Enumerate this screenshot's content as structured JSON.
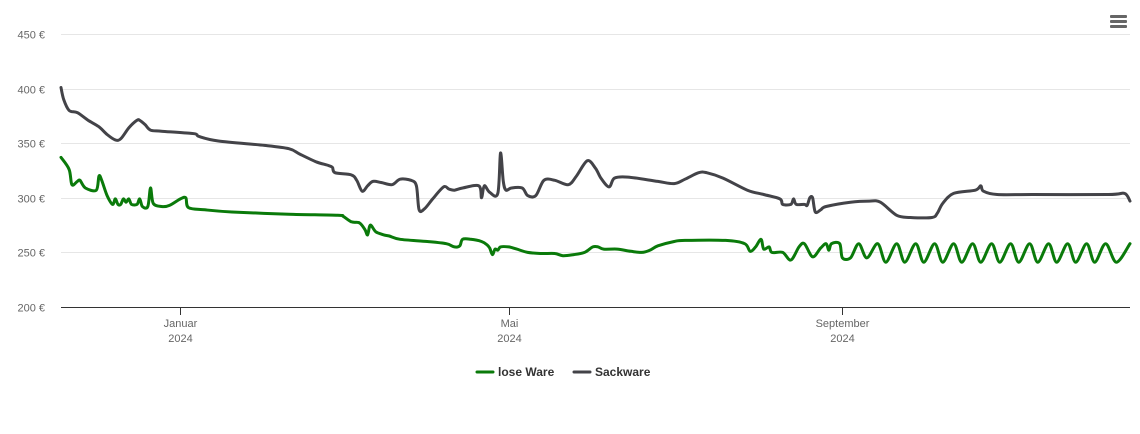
{
  "menu": {
    "icon": "hamburger-menu-icon"
  },
  "chart_data": {
    "type": "line",
    "y_ticks": [
      "200 €",
      "250 €",
      "300 €",
      "350 €",
      "400 €",
      "450 €"
    ],
    "y_tick_values": [
      200,
      250,
      300,
      350,
      400,
      450
    ],
    "ylim": [
      200,
      450
    ],
    "xlim": [
      "2023-11-18",
      "2024-12-16"
    ],
    "x_ticks": [
      {
        "date": "2024-01-01",
        "month": "Januar",
        "year": "2024"
      },
      {
        "date": "2024-05-01",
        "month": "Mai",
        "year": "2024"
      },
      {
        "date": "2024-09-01",
        "month": "September",
        "year": "2024"
      }
    ],
    "grid": true,
    "legend": "bottom-center",
    "series": [
      {
        "name": "lose Ware",
        "color": "#0a7a0a",
        "points": [
          [
            "2023-11-18",
            337
          ],
          [
            "2023-11-21",
            326
          ],
          [
            "2023-11-22",
            312
          ],
          [
            "2023-11-24",
            315
          ],
          [
            "2023-11-25",
            316
          ],
          [
            "2023-11-27",
            309
          ],
          [
            "2023-12-01",
            307
          ],
          [
            "2023-12-02",
            320
          ],
          [
            "2023-12-03",
            316
          ],
          [
            "2023-12-05",
            302
          ],
          [
            "2023-12-07",
            294
          ],
          [
            "2023-12-08",
            299
          ],
          [
            "2023-12-09",
            294
          ],
          [
            "2023-12-10",
            294
          ],
          [
            "2023-12-11",
            299
          ],
          [
            "2023-12-12",
            296
          ],
          [
            "2023-12-13",
            299
          ],
          [
            "2023-12-14",
            294
          ],
          [
            "2023-12-16",
            294
          ],
          [
            "2023-12-17",
            299
          ],
          [
            "2023-12-18",
            292
          ],
          [
            "2023-12-20",
            292
          ],
          [
            "2023-12-21",
            309
          ],
          [
            "2023-12-22",
            295
          ],
          [
            "2023-12-25",
            292
          ],
          [
            "2023-12-28",
            293
          ],
          [
            "2024-01-01",
            299
          ],
          [
            "2024-01-03",
            300
          ],
          [
            "2024-01-04",
            291
          ],
          [
            "2024-01-10",
            289
          ],
          [
            "2024-01-20",
            287
          ],
          [
            "2024-02-10",
            285
          ],
          [
            "2024-02-28",
            284
          ],
          [
            "2024-03-01",
            283
          ],
          [
            "2024-03-04",
            278
          ],
          [
            "2024-03-07",
            277
          ],
          [
            "2024-03-09",
            271
          ],
          [
            "2024-03-10",
            266
          ],
          [
            "2024-03-11",
            275
          ],
          [
            "2024-03-13",
            269
          ],
          [
            "2024-03-16",
            266
          ],
          [
            "2024-03-18",
            265
          ],
          [
            "2024-03-22",
            262
          ],
          [
            "2024-04-01",
            260
          ],
          [
            "2024-04-08",
            258
          ],
          [
            "2024-04-11",
            255
          ],
          [
            "2024-04-13",
            256
          ],
          [
            "2024-04-14",
            262
          ],
          [
            "2024-04-17",
            262
          ],
          [
            "2024-04-21",
            260
          ],
          [
            "2024-04-23",
            257
          ],
          [
            "2024-04-24",
            254
          ],
          [
            "2024-04-25",
            248
          ],
          [
            "2024-04-26",
            253
          ],
          [
            "2024-04-27",
            252
          ],
          [
            "2024-04-28",
            255
          ],
          [
            "2024-05-01",
            255
          ],
          [
            "2024-05-04",
            253
          ],
          [
            "2024-05-08",
            250
          ],
          [
            "2024-05-13",
            249
          ],
          [
            "2024-05-18",
            249
          ],
          [
            "2024-05-21",
            247
          ],
          [
            "2024-05-25",
            248
          ],
          [
            "2024-05-29",
            250
          ],
          [
            "2024-06-01",
            255
          ],
          [
            "2024-06-03",
            255
          ],
          [
            "2024-06-05",
            253
          ],
          [
            "2024-06-10",
            253
          ],
          [
            "2024-06-15",
            251
          ],
          [
            "2024-06-19",
            250
          ],
          [
            "2024-06-22",
            252
          ],
          [
            "2024-06-25",
            256
          ],
          [
            "2024-07-01",
            260
          ],
          [
            "2024-07-05",
            261
          ],
          [
            "2024-07-20",
            261
          ],
          [
            "2024-07-27",
            258
          ],
          [
            "2024-07-29",
            251
          ],
          [
            "2024-07-31",
            255
          ],
          [
            "2024-08-02",
            262
          ],
          [
            "2024-08-03",
            253
          ],
          [
            "2024-08-05",
            255
          ],
          [
            "2024-08-06",
            250
          ],
          [
            "2024-08-10",
            250
          ],
          [
            "2024-08-13",
            243
          ],
          [
            "2024-08-16",
            255
          ],
          [
            "2024-08-18",
            258
          ],
          [
            "2024-08-21",
            246
          ],
          [
            "2024-08-24",
            254
          ],
          [
            "2024-08-26",
            258
          ],
          [
            "2024-08-27",
            252
          ],
          [
            "2024-08-28",
            258
          ],
          [
            "2024-08-31",
            258
          ],
          [
            "2024-09-01",
            245
          ],
          [
            "2024-09-04",
            245
          ],
          [
            "2024-09-07",
            258
          ],
          [
            "2024-09-10",
            245
          ],
          [
            "2024-09-14",
            258
          ],
          [
            "2024-09-17",
            241
          ],
          [
            "2024-09-21",
            258
          ],
          [
            "2024-09-24",
            241
          ],
          [
            "2024-09-28",
            258
          ],
          [
            "2024-10-01",
            241
          ],
          [
            "2024-10-05",
            258
          ],
          [
            "2024-10-08",
            241
          ],
          [
            "2024-10-12",
            258
          ],
          [
            "2024-10-15",
            241
          ],
          [
            "2024-10-19",
            258
          ],
          [
            "2024-10-22",
            241
          ],
          [
            "2024-10-26",
            258
          ],
          [
            "2024-10-29",
            241
          ],
          [
            "2024-11-02",
            258
          ],
          [
            "2024-11-05",
            241
          ],
          [
            "2024-11-09",
            258
          ],
          [
            "2024-11-12",
            241
          ],
          [
            "2024-11-16",
            258
          ],
          [
            "2024-11-19",
            241
          ],
          [
            "2024-11-23",
            258
          ],
          [
            "2024-11-26",
            241
          ],
          [
            "2024-11-30",
            258
          ],
          [
            "2024-12-03",
            241
          ],
          [
            "2024-12-07",
            258
          ],
          [
            "2024-12-11",
            241
          ],
          [
            "2024-12-16",
            258
          ]
        ]
      },
      {
        "name": "Sackware",
        "color": "#434348",
        "points": [
          [
            "2023-11-18",
            401
          ],
          [
            "2023-11-19",
            390
          ],
          [
            "2023-11-21",
            380
          ],
          [
            "2023-11-24",
            378
          ],
          [
            "2023-11-28",
            371
          ],
          [
            "2023-12-02",
            365
          ],
          [
            "2023-12-05",
            358
          ],
          [
            "2023-12-08",
            353
          ],
          [
            "2023-12-10",
            354
          ],
          [
            "2023-12-13",
            364
          ],
          [
            "2023-12-16",
            371
          ],
          [
            "2023-12-17",
            371
          ],
          [
            "2023-12-19",
            367
          ],
          [
            "2023-12-21",
            362
          ],
          [
            "2023-12-25",
            361
          ],
          [
            "2024-01-05",
            359
          ],
          [
            "2024-01-07",
            358
          ],
          [
            "2024-01-08",
            356
          ],
          [
            "2024-01-15",
            352
          ],
          [
            "2024-02-01",
            348
          ],
          [
            "2024-02-10",
            345
          ],
          [
            "2024-02-14",
            340
          ],
          [
            "2024-02-20",
            333
          ],
          [
            "2024-02-24",
            330
          ],
          [
            "2024-02-26",
            328
          ],
          [
            "2024-02-27",
            323
          ],
          [
            "2024-03-04",
            321
          ],
          [
            "2024-03-06",
            316
          ],
          [
            "2024-03-08",
            306
          ],
          [
            "2024-03-10",
            311
          ],
          [
            "2024-03-12",
            315
          ],
          [
            "2024-03-15",
            314
          ],
          [
            "2024-03-19",
            312
          ],
          [
            "2024-03-22",
            317
          ],
          [
            "2024-03-26",
            316
          ],
          [
            "2024-03-28",
            311
          ],
          [
            "2024-03-29",
            289
          ],
          [
            "2024-03-31",
            290
          ],
          [
            "2024-04-03",
            299
          ],
          [
            "2024-04-07",
            310
          ],
          [
            "2024-04-09",
            308
          ],
          [
            "2024-04-11",
            307
          ],
          [
            "2024-04-14",
            309
          ],
          [
            "2024-04-20",
            311
          ],
          [
            "2024-04-21",
            300
          ],
          [
            "2024-04-22",
            311
          ],
          [
            "2024-04-24",
            305
          ],
          [
            "2024-04-27",
            304
          ],
          [
            "2024-04-28",
            341
          ],
          [
            "2024-04-29",
            315
          ],
          [
            "2024-04-30",
            307
          ],
          [
            "2024-05-02",
            309
          ],
          [
            "2024-05-06",
            309
          ],
          [
            "2024-05-08",
            302
          ],
          [
            "2024-05-11",
            302
          ],
          [
            "2024-05-14",
            316
          ],
          [
            "2024-05-18",
            316
          ],
          [
            "2024-05-23",
            312
          ],
          [
            "2024-05-26",
            320
          ],
          [
            "2024-05-30",
            334
          ],
          [
            "2024-06-02",
            327
          ],
          [
            "2024-06-04",
            318
          ],
          [
            "2024-06-07",
            310
          ],
          [
            "2024-06-09",
            318
          ],
          [
            "2024-06-14",
            319
          ],
          [
            "2024-06-25",
            315
          ],
          [
            "2024-07-01",
            313
          ],
          [
            "2024-07-05",
            317
          ],
          [
            "2024-07-10",
            323
          ],
          [
            "2024-07-13",
            323
          ],
          [
            "2024-07-19",
            318
          ],
          [
            "2024-07-28",
            307
          ],
          [
            "2024-08-03",
            303
          ],
          [
            "2024-08-09",
            299
          ],
          [
            "2024-08-10",
            294
          ],
          [
            "2024-08-13",
            294
          ],
          [
            "2024-08-14",
            299
          ],
          [
            "2024-08-15",
            294
          ],
          [
            "2024-08-18",
            294
          ],
          [
            "2024-08-19",
            293
          ],
          [
            "2024-08-20",
            300
          ],
          [
            "2024-08-21",
            300
          ],
          [
            "2024-08-22",
            287
          ],
          [
            "2024-08-24",
            289
          ],
          [
            "2024-08-26",
            292
          ],
          [
            "2024-09-04",
            296
          ],
          [
            "2024-09-11",
            297
          ],
          [
            "2024-09-15",
            296
          ],
          [
            "2024-09-21",
            284
          ],
          [
            "2024-09-26",
            282
          ],
          [
            "2024-10-04",
            282
          ],
          [
            "2024-10-06",
            286
          ],
          [
            "2024-10-08",
            295
          ],
          [
            "2024-10-12",
            304
          ],
          [
            "2024-10-20",
            307
          ],
          [
            "2024-10-22",
            311
          ],
          [
            "2024-10-23",
            306
          ],
          [
            "2024-10-28",
            303
          ],
          [
            "2024-11-10",
            303
          ],
          [
            "2024-12-08",
            303
          ],
          [
            "2024-12-14",
            304
          ],
          [
            "2024-12-16",
            297
          ]
        ]
      }
    ]
  }
}
